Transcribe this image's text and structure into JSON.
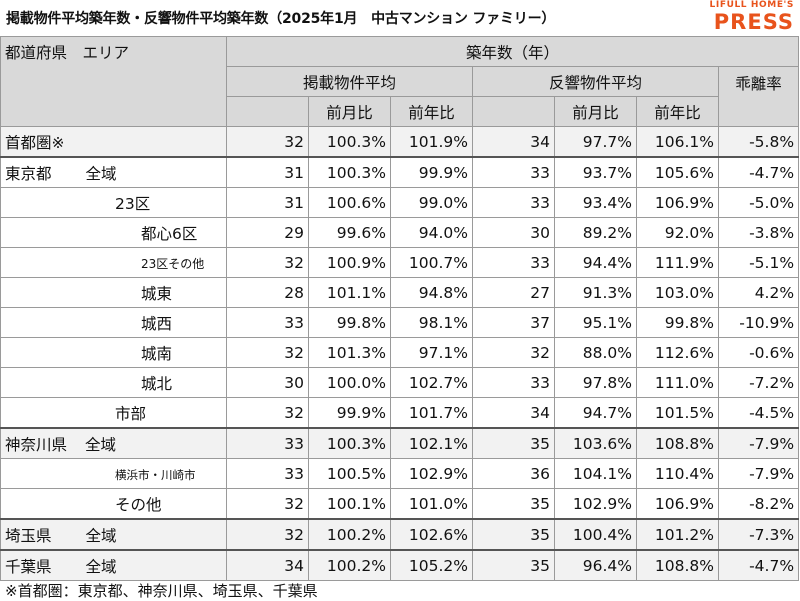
{
  "title": "掲載物件平均築年数・反響物件平均築年数（2025年1月　中古マンション ファミリー）",
  "logo": {
    "top": "LIFULL HOME'S",
    "main": "PRESS",
    "color": "#e8531c"
  },
  "header": {
    "pref_area": "都道府県　エリア",
    "age": "築年数（年）",
    "listing_avg": "掲載物件平均",
    "response_avg": "反響物件平均",
    "deviation": "乖離率",
    "mom": "前月比",
    "yoy": "前年比"
  },
  "rows": [
    {
      "pref": "首都圏※",
      "area": "",
      "l_avg": "32",
      "l_mom": "100.3%",
      "l_yoy": "101.9%",
      "r_avg": "34",
      "r_mom": "97.7%",
      "r_yoy": "106.1%",
      "dev": "-5.8%"
    },
    {
      "pref": "東京都",
      "area": "全域",
      "l_avg": "31",
      "l_mom": "100.3%",
      "l_yoy": "99.9%",
      "r_avg": "33",
      "r_mom": "93.7%",
      "r_yoy": "105.6%",
      "dev": "-4.7%"
    },
    {
      "pref": "",
      "area": "23区",
      "l_avg": "31",
      "l_mom": "100.6%",
      "l_yoy": "99.0%",
      "r_avg": "33",
      "r_mom": "93.4%",
      "r_yoy": "106.9%",
      "dev": "-5.0%"
    },
    {
      "pref": "",
      "area": "都心6区",
      "l_avg": "29",
      "l_mom": "99.6%",
      "l_yoy": "94.0%",
      "r_avg": "30",
      "r_mom": "89.2%",
      "r_yoy": "92.0%",
      "dev": "-3.8%"
    },
    {
      "pref": "",
      "area": "23区その他",
      "l_avg": "32",
      "l_mom": "100.9%",
      "l_yoy": "100.7%",
      "r_avg": "33",
      "r_mom": "94.4%",
      "r_yoy": "111.9%",
      "dev": "-5.1%"
    },
    {
      "pref": "",
      "area": "城東",
      "l_avg": "28",
      "l_mom": "101.1%",
      "l_yoy": "94.8%",
      "r_avg": "27",
      "r_mom": "91.3%",
      "r_yoy": "103.0%",
      "dev": "4.2%"
    },
    {
      "pref": "",
      "area": "城西",
      "l_avg": "33",
      "l_mom": "99.8%",
      "l_yoy": "98.1%",
      "r_avg": "37",
      "r_mom": "95.1%",
      "r_yoy": "99.8%",
      "dev": "-10.9%"
    },
    {
      "pref": "",
      "area": "城南",
      "l_avg": "32",
      "l_mom": "101.3%",
      "l_yoy": "97.1%",
      "r_avg": "32",
      "r_mom": "88.0%",
      "r_yoy": "112.6%",
      "dev": "-0.6%"
    },
    {
      "pref": "",
      "area": "城北",
      "l_avg": "30",
      "l_mom": "100.0%",
      "l_yoy": "102.7%",
      "r_avg": "33",
      "r_mom": "97.8%",
      "r_yoy": "111.0%",
      "dev": "-7.2%"
    },
    {
      "pref": "",
      "area": "市部",
      "l_avg": "32",
      "l_mom": "99.9%",
      "l_yoy": "101.7%",
      "r_avg": "34",
      "r_mom": "94.7%",
      "r_yoy": "101.5%",
      "dev": "-4.5%"
    },
    {
      "pref": "神奈川県",
      "area": "全域",
      "l_avg": "33",
      "l_mom": "100.3%",
      "l_yoy": "102.1%",
      "r_avg": "35",
      "r_mom": "103.6%",
      "r_yoy": "108.8%",
      "dev": "-7.9%"
    },
    {
      "pref": "",
      "area": "横浜市・川崎市",
      "l_avg": "33",
      "l_mom": "100.5%",
      "l_yoy": "102.9%",
      "r_avg": "36",
      "r_mom": "104.1%",
      "r_yoy": "110.4%",
      "dev": "-7.9%"
    },
    {
      "pref": "",
      "area": "その他",
      "l_avg": "32",
      "l_mom": "100.1%",
      "l_yoy": "101.0%",
      "r_avg": "35",
      "r_mom": "102.9%",
      "r_yoy": "106.9%",
      "dev": "-8.2%"
    },
    {
      "pref": "埼玉県",
      "area": "全域",
      "l_avg": "32",
      "l_mom": "100.2%",
      "l_yoy": "102.6%",
      "r_avg": "35",
      "r_mom": "100.4%",
      "r_yoy": "101.2%",
      "dev": "-7.3%"
    },
    {
      "pref": "千葉県",
      "area": "全域",
      "l_avg": "34",
      "l_mom": "100.2%",
      "l_yoy": "105.2%",
      "r_avg": "35",
      "r_mom": "96.4%",
      "r_yoy": "108.8%",
      "dev": "-4.7%"
    }
  ],
  "footnote": "※首都圏：東京都、神奈川県、埼玉県、千葉県"
}
